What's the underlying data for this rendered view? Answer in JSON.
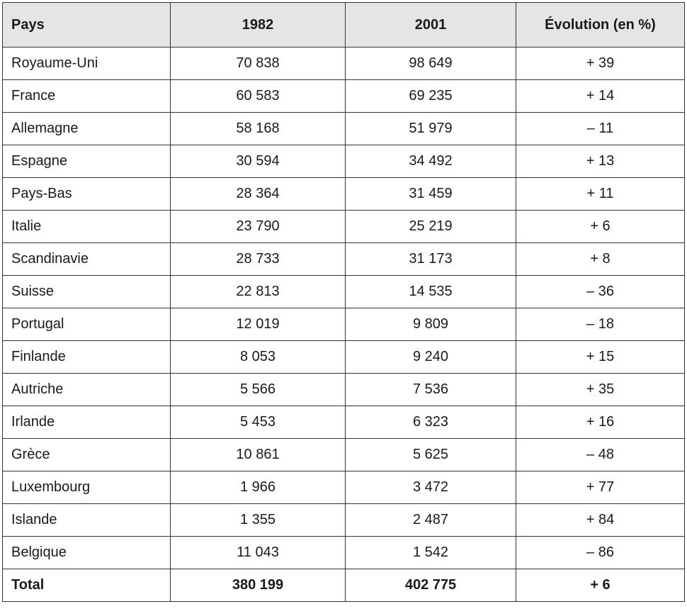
{
  "table": {
    "header": [
      "Pays",
      "1982",
      "2001",
      "Évolution (en %)"
    ],
    "rows": [
      [
        "Royaume-Uni",
        "70 838",
        "98 649",
        "+ 39"
      ],
      [
        "France",
        "60 583",
        "69 235",
        "+ 14"
      ],
      [
        "Allemagne",
        "58 168",
        "51 979",
        "– 11"
      ],
      [
        "Espagne",
        "30 594",
        "34 492",
        "+ 13"
      ],
      [
        "Pays-Bas",
        "28 364",
        "31 459",
        "+ 11"
      ],
      [
        "Italie",
        "23 790",
        "25 219",
        "+ 6"
      ],
      [
        "Scandinavie",
        "28 733",
        "31 173",
        "+ 8"
      ],
      [
        "Suisse",
        "22 813",
        "14 535",
        "– 36"
      ],
      [
        "Portugal",
        "12 019",
        "9 809",
        "– 18"
      ],
      [
        "Finlande",
        "8 053",
        "9 240",
        "+ 15"
      ],
      [
        "Autriche",
        "5 566",
        "7 536",
        "+ 35"
      ],
      [
        "Irlande",
        "5 453",
        "6 323",
        "+ 16"
      ],
      [
        "Grèce",
        "10 861",
        "5 625",
        "– 48"
      ],
      [
        "Luxembourg",
        "1 966",
        "3 472",
        "+ 77"
      ],
      [
        "Islande",
        "1 355",
        "2 487",
        "+ 84"
      ],
      [
        "Belgique",
        "11 043",
        "1 542",
        "– 86"
      ]
    ],
    "total": [
      "Total",
      "380 199",
      "402 775",
      "+ 6"
    ]
  }
}
